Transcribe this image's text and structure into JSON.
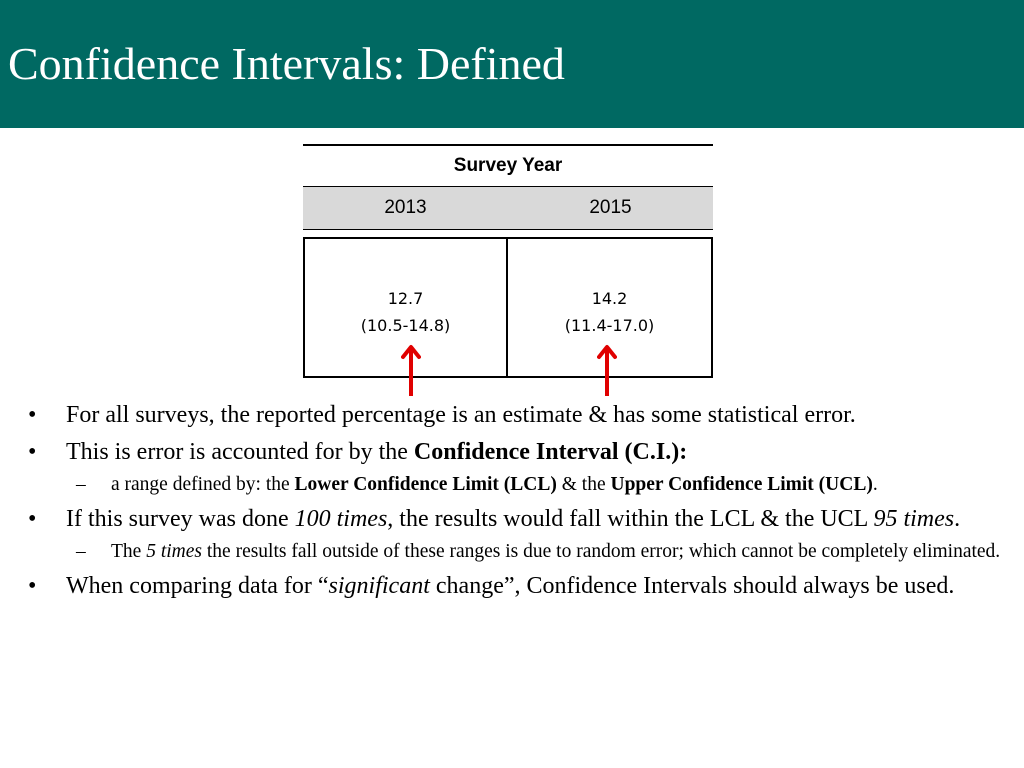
{
  "title": "Confidence Intervals: Defined",
  "table": {
    "header": "Survey Year",
    "years": [
      "2013",
      "2015"
    ],
    "cells": [
      {
        "estimate": "12.7",
        "interval": "(10.5-14.8)"
      },
      {
        "estimate": "14.2",
        "interval": "(11.4-17.0)"
      }
    ]
  },
  "colors": {
    "title_bar": "#006962",
    "arrow": "#e00000",
    "header_row": "#d9d9d9"
  },
  "bullets": {
    "b1": "For all surveys, the reported percentage is an estimate & has some statistical error.",
    "b2_pre": "This is error is accounted for by the ",
    "b2_bold": "Confidence Interval (C.I.):",
    "b2_sub_pre": "a range defined by: the ",
    "b2_sub_bold1": "Lower Confidence Limit (LCL)",
    "b2_sub_mid": " & the ",
    "b2_sub_bold2": "Upper Confidence Limit (UCL)",
    "b2_sub_end": ".",
    "b3_pre": "If this survey was done ",
    "b3_ital1": "100 times",
    "b3_mid": ", the results would fall within the LCL & the UCL ",
    "b3_ital2": "95 times",
    "b3_end": ".",
    "b3_sub_pre": "The ",
    "b3_sub_ital": "5 times",
    "b3_sub_end": " the results fall outside of these ranges is due to random error; which cannot be completely eliminated.",
    "b4_pre": "When comparing data for “",
    "b4_ital": "significant",
    "b4_end": " change”, Confidence Intervals should always be used."
  },
  "symbols": {
    "bullet": "•",
    "dash": "–"
  }
}
